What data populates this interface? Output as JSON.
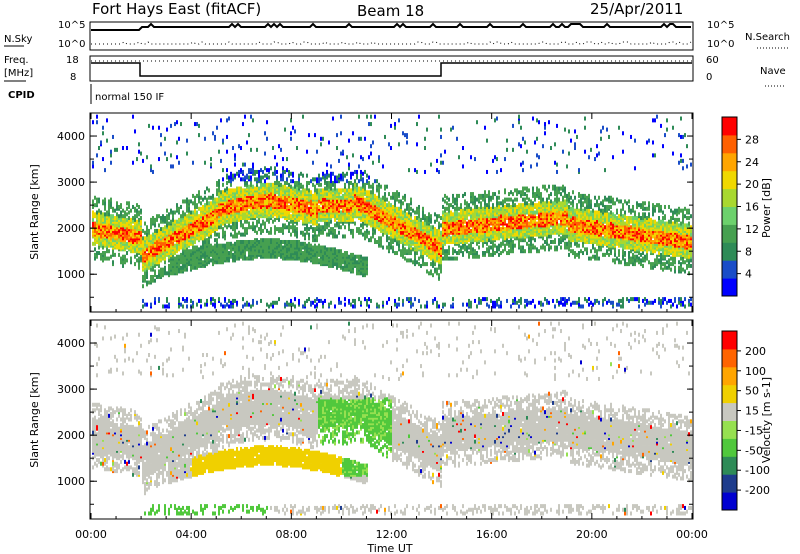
{
  "header": {
    "title": "Fort Hays East (fitACF)",
    "beam": "Beam 18",
    "date": "25/Apr/2011"
  },
  "top_panels": {
    "nsky_label": "N.Sky",
    "nsky_ticks": [
      "10^5",
      "10^0"
    ],
    "nsearch_label": "N.Search",
    "nsearch_ticks": [
      "10^5",
      "10^0"
    ],
    "freq_label": "Freq.",
    "freq_unit": "[MHz]",
    "freq_ticks": [
      "18",
      "8"
    ],
    "nave_label": "Nave",
    "nave_ticks": [
      "60",
      "0"
    ],
    "cpid_label": "CPID",
    "cpid_value": "normal 150 IF"
  },
  "chart_data": [
    {
      "type": "heatmap",
      "name": "power",
      "ylabel": "Slant Range [km]",
      "ylim": [
        180,
        4500
      ],
      "yticks": [
        "1000",
        "2000",
        "3000",
        "4000"
      ],
      "colorbar_label": "Power [dB]",
      "colorbar_ticks": [
        "4",
        "8",
        "12",
        "16",
        "20",
        "24",
        "28"
      ],
      "colors": [
        "#0000ff",
        "#1a4dc8",
        "#2e8b57",
        "#46a050",
        "#6cd16c",
        "#a8d830",
        "#f0d800",
        "#ffa500",
        "#ff6000",
        "#ff0000"
      ]
    },
    {
      "type": "heatmap",
      "name": "velocity",
      "ylabel": "Slant Range [km]",
      "ylim": [
        180,
        4500
      ],
      "yticks": [
        "1000",
        "2000",
        "3000",
        "4000"
      ],
      "colorbar_label": "Velocity [m s-1]",
      "colorbar_ticks": [
        "200",
        "100",
        "50",
        "15",
        "-15",
        "-50",
        "-100",
        "-200"
      ],
      "colors": [
        "#0000d0",
        "#1e3c8c",
        "#2e8b57",
        "#50c83c",
        "#96e050",
        "#c8c8c0",
        "#f0d000",
        "#ffa500",
        "#ff6400",
        "#ff0000"
      ]
    }
  ],
  "xaxis": {
    "label": "Time UT",
    "ticks": [
      "00:00",
      "04:00",
      "08:00",
      "12:00",
      "16:00",
      "20:00",
      "00:00"
    ]
  }
}
